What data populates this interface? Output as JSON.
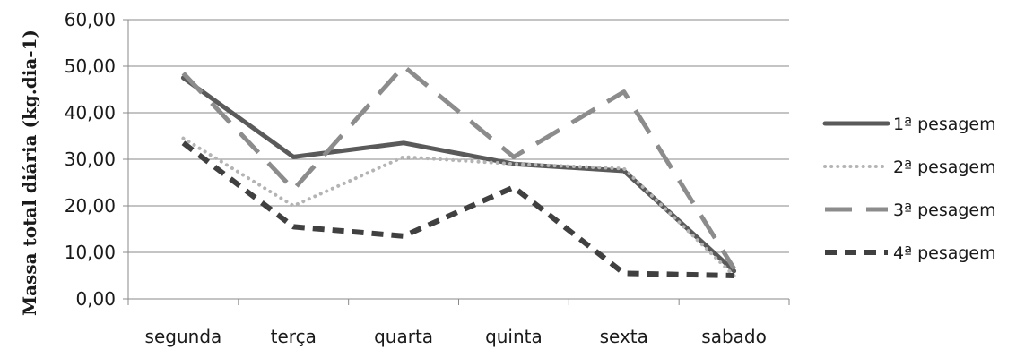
{
  "chart_data": {
    "type": "line",
    "title": "",
    "xlabel": "",
    "ylabel": "Massa total diária (kg.dia-1)",
    "categories": [
      "segunda",
      "terça",
      "quarta",
      "quinta",
      "sexta",
      "sabado"
    ],
    "ylim": [
      0,
      60
    ],
    "yticks": [
      "0,00",
      "10,00",
      "20,00",
      "30,00",
      "40,00",
      "50,00",
      "60,00"
    ],
    "grid": "horizontal",
    "legend_position": "right",
    "series": [
      {
        "name": "1ª pesagem",
        "values": [
          47.5,
          30.5,
          33.5,
          29.0,
          27.5,
          6.0
        ],
        "color": "#5a5a5a",
        "style": "solid"
      },
      {
        "name": "2ª pesagem",
        "values": [
          34.5,
          20.0,
          30.5,
          29.0,
          28.0,
          5.0
        ],
        "color": "#b4b4b4",
        "style": "dotted"
      },
      {
        "name": "3ª pesagem",
        "values": [
          48.5,
          23.5,
          50.0,
          30.5,
          44.5,
          6.5
        ],
        "color": "#8c8c8c",
        "style": "long-dash"
      },
      {
        "name": "4ª pesagem",
        "values": [
          33.5,
          15.5,
          13.5,
          24.0,
          5.5,
          5.0
        ],
        "color": "#404040",
        "style": "dash"
      }
    ]
  }
}
